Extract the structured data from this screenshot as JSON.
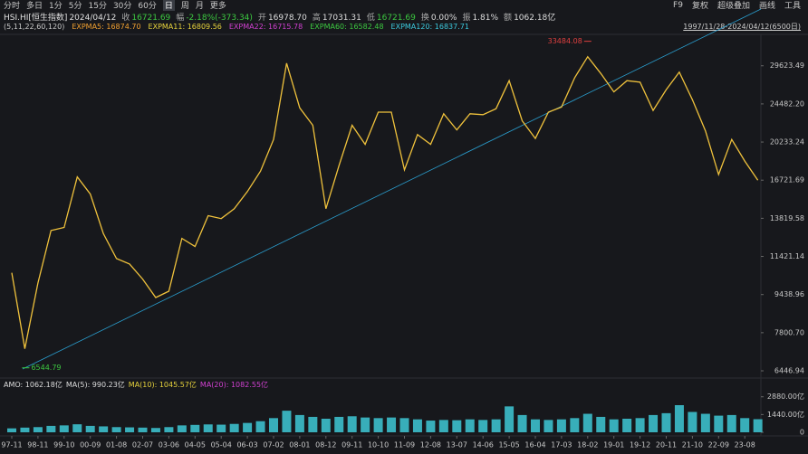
{
  "header": {
    "tabs": [
      "分时",
      "多日",
      "1分",
      "5分",
      "15分",
      "30分",
      "60分",
      "日",
      "周",
      "月",
      "更多"
    ],
    "tools": [
      "F9",
      "复权",
      "超级叠加",
      "画线",
      "工具"
    ],
    "info": [
      {
        "label": "HSI.HI[恒生指数]",
        "value": "2024/04/12"
      },
      {
        "label": "收",
        "value": "16721.69"
      },
      {
        "label": "幅",
        "value": "-2.18%(-373.34)"
      },
      {
        "label": "开",
        "value": "16978.70"
      },
      {
        "label": "高",
        "value": "17031.31"
      },
      {
        "label": "低",
        "value": "16721.69"
      },
      {
        "label": "换",
        "value": "0.00%"
      },
      {
        "label": "振",
        "value": "1.81%"
      },
      {
        "label": "额",
        "value": "1062.18亿"
      }
    ],
    "ma_params": "(5,11,22,60,120)",
    "ma": [
      {
        "text": "EXPMA5: 16874.70",
        "color": "#f0a030"
      },
      {
        "text": "EXPMA11: 16809.56",
        "color": "#e6d23c"
      },
      {
        "text": "EXPMA22: 16715.78",
        "color": "#d040d0"
      },
      {
        "text": "EXPMA60: 16582.48",
        "color": "#3cc840"
      },
      {
        "text": "EXPMA120: 16837.71",
        "color": "#3cc8dc"
      }
    ],
    "range": "1997/11/28-2024/04/12(6500日)",
    "volume_info": [
      {
        "text": "AMO: 1062.18亿",
        "color": "#dddddd"
      },
      {
        "text": "MA(5): 990.23亿",
        "color": "#dddddd"
      },
      {
        "text": "MA(10): 1045.57亿",
        "color": "#e6d23c"
      },
      {
        "text": "MA(20): 1082.55亿",
        "color": "#d040d0"
      }
    ]
  },
  "chart_data": [
    {
      "type": "line",
      "log_scale": true,
      "grid": false,
      "categories": [
        "97-11",
        null,
        "98-11",
        null,
        "99-10",
        null,
        "00-09",
        null,
        "01-08",
        null,
        "02-07",
        null,
        "03-06",
        null,
        "04-05",
        null,
        "05-04",
        null,
        "06-03",
        null,
        "07-02",
        null,
        "08-01",
        null,
        "08-12",
        null,
        "09-11",
        null,
        "10-10",
        null,
        "11-09",
        null,
        "12-08",
        null,
        "13-07",
        null,
        "14-06",
        null,
        "15-05",
        null,
        "16-04",
        null,
        "17-03",
        null,
        "18-02",
        null,
        "19-01",
        null,
        "19-12",
        null,
        "20-11",
        null,
        "21-10",
        null,
        "22-09",
        null,
        "23-08",
        null
      ],
      "series": [
        {
          "color": "#f0c23c",
          "values": [
            10527,
            7200,
            10000,
            13000,
            13200,
            17000,
            15600,
            12800,
            11300,
            11000,
            10200,
            9300,
            9600,
            12500,
            12000,
            14000,
            13800,
            14500,
            15800,
            17500,
            20500,
            30000,
            24000,
            22000,
            14500,
            18000,
            22000,
            20000,
            23500,
            23500,
            17600,
            21000,
            20000,
            23300,
            21500,
            23300,
            23200,
            23900,
            27500,
            22500,
            20600,
            23500,
            24100,
            27900,
            31000,
            28500,
            26000,
            27500,
            27300,
            23700,
            26300,
            28700,
            25000,
            21400,
            17200,
            20500,
            18400,
            16721.69
          ]
        }
      ],
      "high": 33484.08,
      "low": 6544.79,
      "ylim": [
        6275,
        34350
      ],
      "yticks": [
        6446.94,
        {
          "value": 7800.7,
          "label": "7800.70"
        },
        9438.96,
        11421.14,
        13819.58,
        16721.69,
        20233.24,
        {
          "value": 24482.2,
          "label": "24482.20"
        },
        29623.49
      ]
    },
    {
      "type": "bar",
      "color": "#3ec9d6",
      "values": [
        320,
        380,
        420,
        520,
        560,
        650,
        520,
        480,
        420,
        400,
        380,
        350,
        420,
        560,
        600,
        640,
        620,
        680,
        760,
        900,
        1150,
        1750,
        1400,
        1250,
        1100,
        1250,
        1300,
        1200,
        1150,
        1200,
        1150,
        1050,
        950,
        1000,
        980,
        1050,
        1000,
        1050,
        2100,
        1400,
        1050,
        1000,
        1050,
        1150,
        1500,
        1250,
        1050,
        1100,
        1150,
        1400,
        1550,
        2200,
        1650,
        1500,
        1350,
        1400,
        1150,
        1062.18
      ],
      "ylim": [
        0,
        3300
      ],
      "yticks": [
        {
          "value": 2880,
          "label": "2880.00亿"
        },
        {
          "value": 1440,
          "label": "1440.00亿"
        },
        0
      ]
    }
  ]
}
